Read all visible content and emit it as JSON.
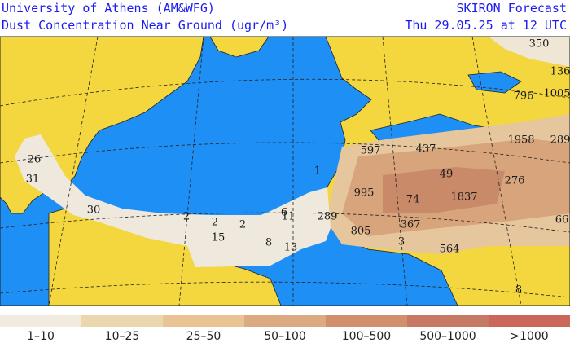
{
  "header": {
    "title_left": "University of Athens (AM&WFG)",
    "subtitle_left": "Dust Concentration Near Ground (ugr/m³)",
    "title_right": "SKIRON Forecast",
    "subtitle_right": "Thu 29.05.25 at 12 UTC"
  },
  "legend": [
    {
      "label": "1–10",
      "color": "#f1ebdf"
    },
    {
      "label": "10–25",
      "color": "#ecd6ae"
    },
    {
      "label": "25–50",
      "color": "#e9c393"
    },
    {
      "label": "50–100",
      "color": "#dcaa80"
    },
    {
      "label": "100–500",
      "color": "#d28f6c"
    },
    {
      "label": "500–1000",
      "color": "#c67a63"
    },
    {
      "label": ">1000",
      "color": "#cb675b"
    }
  ],
  "map_labels": [
    "350",
    "136",
    "796",
    "1005",
    "1958",
    "289",
    "597",
    "437",
    "49",
    "276",
    "1",
    "995",
    "74",
    "1837",
    "6",
    "289",
    "805",
    "367",
    "66",
    "26",
    "31",
    "2",
    "2",
    "30",
    "2",
    "11",
    "15",
    "8",
    "13",
    "3",
    "564",
    "8"
  ]
}
